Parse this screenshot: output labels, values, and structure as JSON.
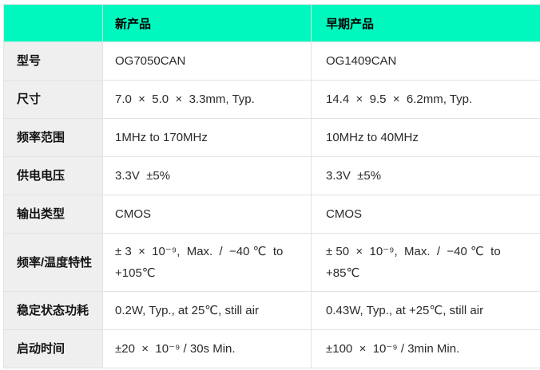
{
  "table": {
    "header": {
      "new_product": "新产品",
      "early_product": "早期产品"
    },
    "rows": [
      {
        "label": "型号",
        "new_product": "OG7050CAN",
        "early_product": "OG1409CAN"
      },
      {
        "label": "尺寸",
        "new_product": "7.0  ×  5.0  ×  3.3mm, Typ.",
        "early_product": "14.4  ×  9.5  ×  6.2mm, Typ."
      },
      {
        "label": "频率范围",
        "new_product": "1MHz to 170MHz",
        "early_product": "10MHz to 40MHz"
      },
      {
        "label": "供电电压",
        "new_product": "3.3V  ±5%",
        "early_product": "3.3V  ±5%"
      },
      {
        "label": "输出类型",
        "new_product": "CMOS",
        "early_product": "CMOS"
      },
      {
        "label": "频率/温度特性",
        "new_product": "± 3  ×  10⁻⁹,  Max.  /  −40 ℃  to\n+105℃",
        "early_product": "± 50  ×  10⁻⁹,  Max.  /  −40 ℃  to\n+85℃"
      },
      {
        "label": "稳定状态功耗",
        "new_product": "0.2W, Typ., at 25℃, still air",
        "early_product": "0.43W, Typ., at +25℃, still air"
      },
      {
        "label": "启动时间",
        "new_product": "±20  ×  10⁻⁹ / 30s Min.",
        "early_product": "±100  ×  10⁻⁹ / 3min Min."
      }
    ],
    "colors": {
      "header_bg": "#00f8be",
      "label_bg": "#efefef",
      "border": "#e2e2e2",
      "text": "#2a2a2a"
    }
  }
}
